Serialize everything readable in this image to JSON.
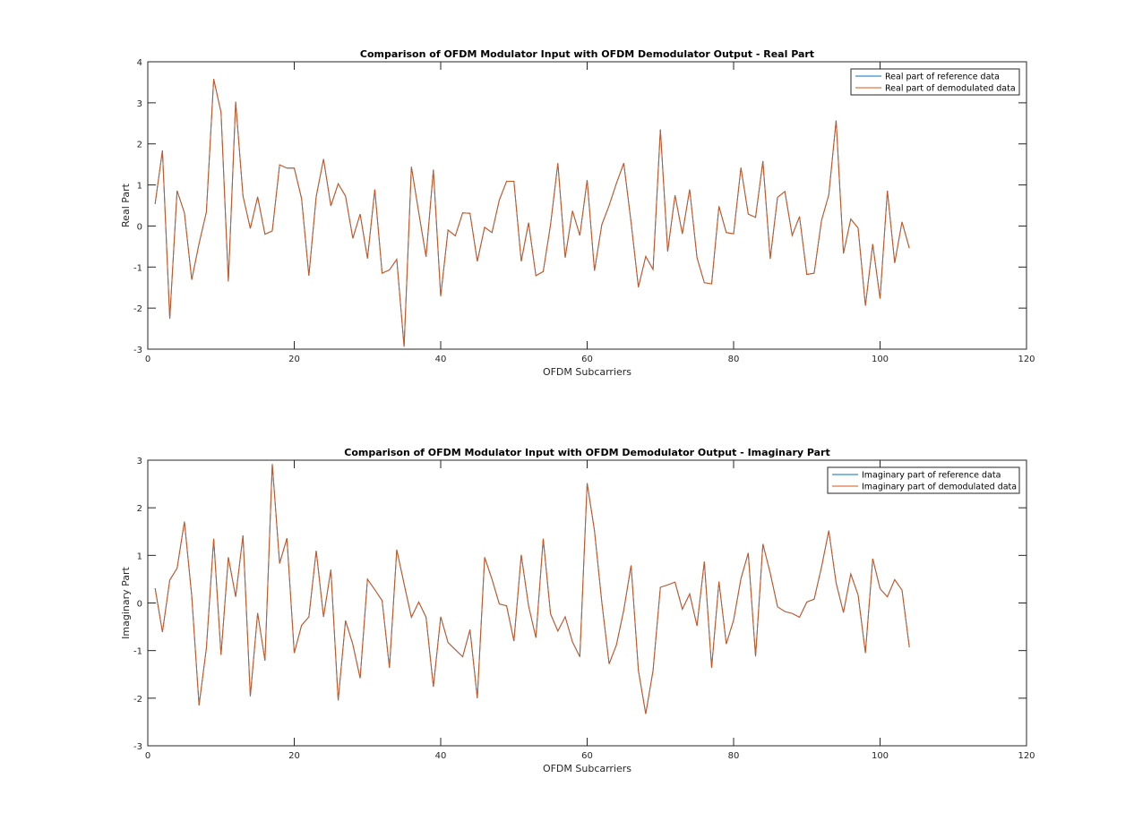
{
  "chart_data": [
    {
      "type": "line",
      "title": "Comparison of OFDM Modulator Input with OFDM Demodulator Output - Real Part",
      "xlabel": "OFDM Subcarriers",
      "ylabel": "Real Part",
      "xlim": [
        0,
        120
      ],
      "ylim": [
        -3,
        4
      ],
      "xticks": [
        0,
        20,
        40,
        60,
        80,
        100,
        120
      ],
      "yticks": [
        -3,
        -2,
        -1,
        0,
        1,
        2,
        3,
        4
      ],
      "grid": false,
      "legend_position": "top-right",
      "series": [
        {
          "name": "Real part of reference data",
          "color": "#0072BD",
          "values": [
            0.54,
            1.84,
            -2.26,
            0.86,
            0.32,
            -1.31,
            -0.43,
            0.34,
            3.58,
            2.77,
            -1.35,
            3.03,
            0.73,
            -0.06,
            0.71,
            -0.2,
            -0.12,
            1.49,
            1.41,
            1.41,
            0.67,
            -1.21,
            0.72,
            1.63,
            0.49,
            1.03,
            0.73,
            -0.3,
            0.29,
            -0.79,
            0.89,
            -1.15,
            -1.07,
            -0.81,
            -2.94,
            1.44,
            0.33,
            -0.75,
            1.37,
            -1.71,
            -0.1,
            -0.24,
            0.32,
            0.31,
            -0.86,
            -0.03,
            -0.16,
            0.63,
            1.09,
            1.09,
            -0.86,
            0.08,
            -1.21,
            -1.11,
            0.03,
            1.53,
            -0.77,
            0.37,
            -0.23,
            1.12,
            -1.09,
            0.03,
            0.5,
            1.04,
            1.53,
            0.09,
            -1.49,
            -0.74,
            -1.06,
            2.35,
            -0.62,
            0.75,
            -0.19,
            0.89,
            -0.77,
            -1.38,
            -1.41,
            0.48,
            -0.16,
            -0.19,
            1.42,
            0.29,
            0.21,
            1.58,
            -0.8,
            0.7,
            0.84,
            -0.23,
            0.23,
            -1.18,
            -1.15,
            0.13,
            0.76,
            2.57,
            -0.67,
            0.17,
            -0.05,
            -1.94,
            -0.44,
            -1.77,
            0.86,
            -0.9,
            0.1,
            -0.54
          ]
        },
        {
          "name": "Real part of demodulated data",
          "color": "#D95319",
          "values": [
            0.54,
            1.84,
            -2.26,
            0.86,
            0.32,
            -1.31,
            -0.43,
            0.34,
            3.58,
            2.77,
            -1.35,
            3.03,
            0.73,
            -0.06,
            0.71,
            -0.2,
            -0.12,
            1.49,
            1.41,
            1.41,
            0.67,
            -1.21,
            0.72,
            1.63,
            0.49,
            1.03,
            0.73,
            -0.3,
            0.29,
            -0.79,
            0.89,
            -1.15,
            -1.07,
            -0.81,
            -2.94,
            1.44,
            0.33,
            -0.75,
            1.37,
            -1.71,
            -0.1,
            -0.24,
            0.32,
            0.31,
            -0.86,
            -0.03,
            -0.16,
            0.63,
            1.09,
            1.09,
            -0.86,
            0.08,
            -1.21,
            -1.11,
            0.03,
            1.53,
            -0.77,
            0.37,
            -0.23,
            1.12,
            -1.09,
            0.03,
            0.5,
            1.04,
            1.53,
            0.09,
            -1.49,
            -0.74,
            -1.06,
            2.35,
            -0.62,
            0.75,
            -0.19,
            0.89,
            -0.77,
            -1.38,
            -1.41,
            0.48,
            -0.16,
            -0.19,
            1.42,
            0.29,
            0.21,
            1.58,
            -0.8,
            0.7,
            0.84,
            -0.23,
            0.23,
            -1.18,
            -1.15,
            0.13,
            0.76,
            2.57,
            -0.67,
            0.17,
            -0.05,
            -1.94,
            -0.44,
            -1.77,
            0.86,
            -0.9,
            0.1,
            -0.54
          ]
        }
      ]
    },
    {
      "type": "line",
      "title": "Comparison of OFDM Modulator Input with OFDM Demodulator Output - Imaginary Part",
      "xlabel": "OFDM Subcarriers",
      "ylabel": "Imaginary Part",
      "xlim": [
        0,
        120
      ],
      "ylim": [
        -3,
        3
      ],
      "xticks": [
        0,
        20,
        40,
        60,
        80,
        100,
        120
      ],
      "yticks": [
        -3,
        -2,
        -1,
        0,
        1,
        2,
        3
      ],
      "grid": false,
      "legend_position": "top-right",
      "series": [
        {
          "name": "Imaginary part of reference data",
          "color": "#0072BD",
          "values": [
            0.31,
            -0.61,
            0.48,
            0.73,
            1.71,
            0.15,
            -2.15,
            -0.95,
            1.35,
            -1.09,
            0.96,
            0.13,
            1.42,
            -1.96,
            -0.21,
            -1.21,
            2.92,
            0.83,
            1.36,
            -1.05,
            -0.47,
            -0.29,
            1.1,
            -0.29,
            0.7,
            -2.05,
            -0.37,
            -0.87,
            -1.58,
            0.5,
            0.28,
            0.05,
            -1.36,
            1.12,
            0.4,
            -0.3,
            0.02,
            -0.3,
            -1.76,
            -0.29,
            -0.83,
            -0.98,
            -1.13,
            -0.56,
            -2.0,
            0.96,
            0.5,
            -0.02,
            -0.06,
            -0.8,
            1.01,
            -0.06,
            -0.73,
            1.35,
            -0.23,
            -0.59,
            -0.29,
            -0.82,
            -1.13,
            2.52,
            1.52,
            0.02,
            -1.28,
            -0.88,
            -0.15,
            0.79,
            -1.42,
            -2.33,
            -1.42,
            0.33,
            0.38,
            0.44,
            -0.13,
            0.19,
            -0.48,
            0.87,
            -1.36,
            0.45,
            -0.86,
            -0.36,
            0.51,
            1.05,
            -1.12,
            1.24,
            0.63,
            -0.08,
            -0.18,
            -0.22,
            -0.3,
            0.02,
            0.08,
            0.75,
            1.52,
            0.42,
            -0.2,
            0.61,
            0.17,
            -1.05,
            0.93,
            0.3,
            0.13,
            0.49,
            0.27,
            -0.93
          ]
        },
        {
          "name": "Imaginary part of demodulated data",
          "color": "#D95319",
          "values": [
            0.31,
            -0.61,
            0.48,
            0.73,
            1.71,
            0.15,
            -2.15,
            -0.95,
            1.35,
            -1.09,
            0.96,
            0.13,
            1.42,
            -1.96,
            -0.21,
            -1.21,
            2.92,
            0.83,
            1.36,
            -1.05,
            -0.47,
            -0.29,
            1.1,
            -0.29,
            0.7,
            -2.05,
            -0.37,
            -0.87,
            -1.58,
            0.5,
            0.28,
            0.05,
            -1.36,
            1.12,
            0.4,
            -0.3,
            0.02,
            -0.3,
            -1.76,
            -0.29,
            -0.83,
            -0.98,
            -1.13,
            -0.56,
            -2.0,
            0.96,
            0.5,
            -0.02,
            -0.06,
            -0.8,
            1.01,
            -0.06,
            -0.73,
            1.35,
            -0.23,
            -0.59,
            -0.29,
            -0.82,
            -1.13,
            2.52,
            1.52,
            0.02,
            -1.28,
            -0.88,
            -0.15,
            0.79,
            -1.42,
            -2.33,
            -1.42,
            0.33,
            0.38,
            0.44,
            -0.13,
            0.19,
            -0.48,
            0.87,
            -1.36,
            0.45,
            -0.86,
            -0.36,
            0.51,
            1.05,
            -1.12,
            1.24,
            0.63,
            -0.08,
            -0.18,
            -0.22,
            -0.3,
            0.02,
            0.08,
            0.75,
            1.52,
            0.42,
            -0.2,
            0.61,
            0.17,
            -1.05,
            0.93,
            0.3,
            0.13,
            0.49,
            0.27,
            -0.93
          ]
        }
      ]
    }
  ]
}
